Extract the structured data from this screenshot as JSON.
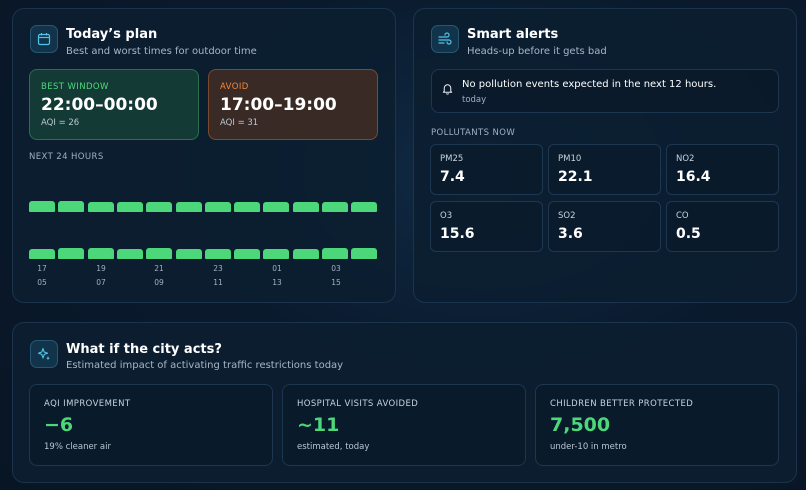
{
  "plan": {
    "title": "Today’s plan",
    "subtitle": "Best and worst times for outdoor time",
    "best": {
      "label": "BEST WINDOW",
      "time": "22:00–00:00",
      "aqi": "AQI = 26"
    },
    "avoid": {
      "label": "AVOID",
      "time": "17:00–19:00",
      "aqi": "AQI = 31"
    },
    "forecast_label": "NEXT 24 HOURS",
    "hours_row1": [
      "17",
      "19",
      "21",
      "23",
      "01",
      "03"
    ],
    "hours_row2": [
      "05",
      "07",
      "09",
      "11",
      "13",
      "15"
    ],
    "bar_color": "#4cd87a",
    "bar_levels_row1": [
      0.9,
      0.9,
      0.85,
      0.8,
      0.8,
      0.8,
      0.8,
      0.8,
      0.8,
      0.8,
      0.8,
      0.8
    ],
    "bar_levels_row2": [
      0.8,
      0.9,
      0.9,
      0.85,
      0.9,
      0.85,
      0.8,
      0.8,
      0.8,
      0.85,
      0.9,
      0.9
    ]
  },
  "alerts": {
    "title": "Smart alerts",
    "subtitle": "Heads-up before it gets bad",
    "message": "No pollution events expected in the next 12 hours.",
    "when": "today",
    "pollutants_label": "POLLUTANTS NOW",
    "pollutants": [
      {
        "name": "PM25",
        "value": "7.4"
      },
      {
        "name": "PM10",
        "value": "22.1"
      },
      {
        "name": "NO2",
        "value": "16.4"
      },
      {
        "name": "O3",
        "value": "15.6"
      },
      {
        "name": "SO2",
        "value": "3.6"
      },
      {
        "name": "CO",
        "value": "0.5"
      }
    ]
  },
  "impact": {
    "title": "What if the city acts?",
    "subtitle": "Estimated impact of activating traffic restrictions today",
    "cards": [
      {
        "label": "AQI IMPROVEMENT",
        "value": "−6",
        "note": "19% cleaner air"
      },
      {
        "label": "HOSPITAL VISITS AVOIDED",
        "value": "~11",
        "note": "estimated, today"
      },
      {
        "label": "CHILDREN BETTER PROTECTED",
        "value": "7,500",
        "note": "under-10 in metro"
      }
    ]
  },
  "colors": {
    "accent_green": "#4cd87a",
    "accent_orange": "#f0883e",
    "icon_cyan": "#4fc3e8"
  },
  "icons": {
    "plan": "calendar-icon",
    "alerts": "wind-icon",
    "alert_message": "bell-icon",
    "impact": "sparkles-icon"
  }
}
